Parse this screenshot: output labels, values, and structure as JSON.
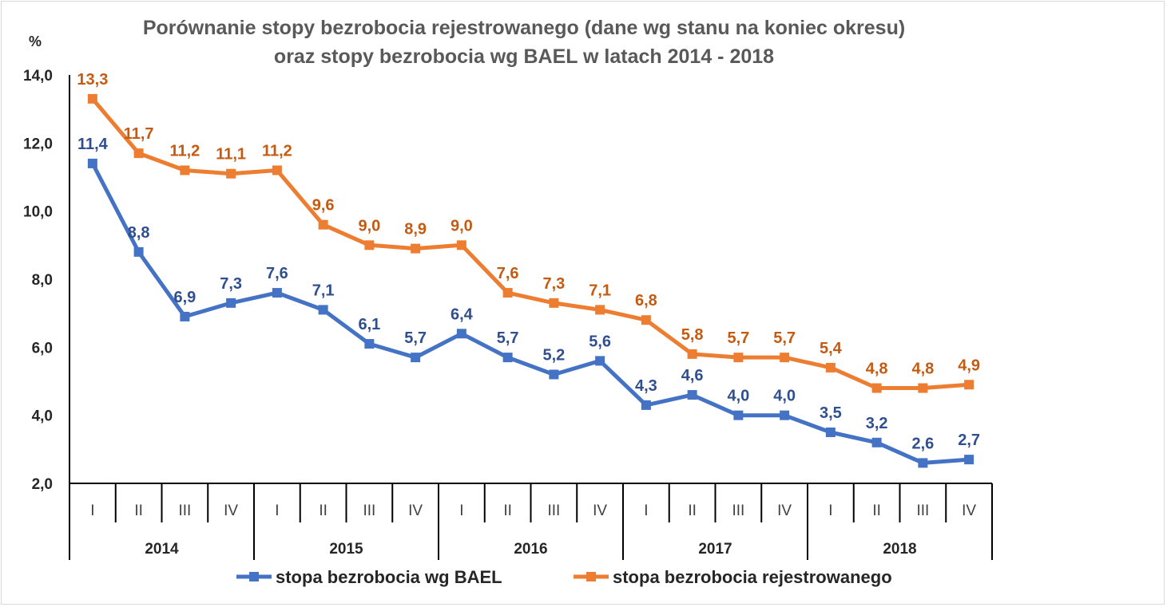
{
  "chart_data": {
    "type": "line",
    "title": "Porównanie stopy bezrobocia rejestrowanego (dane wg stanu na koniec okresu)",
    "subtitle": "oraz stopy bezrobocia wg BAEL w latach 2014 - 2018",
    "ylabel": "%",
    "ylim": [
      2.0,
      14.0
    ],
    "yticks": [
      "2,0",
      "4,0",
      "6,0",
      "8,0",
      "10,0",
      "12,0",
      "14,0"
    ],
    "years": [
      "2014",
      "2015",
      "2016",
      "2017",
      "2018"
    ],
    "quarters": [
      "I",
      "II",
      "III",
      "IV"
    ],
    "categories": [
      "2014 I",
      "2014 II",
      "2014 III",
      "2014 IV",
      "2015 I",
      "2015 II",
      "2015 III",
      "2015 IV",
      "2016 I",
      "2016 II",
      "2016 III",
      "2016 IV",
      "2017 I",
      "2017 II",
      "2017 III",
      "2017 IV",
      "2018 I",
      "2018 II",
      "2018 III",
      "2018 IV"
    ],
    "series": [
      {
        "name": "stopa bezrobocia wg BAEL",
        "color": "#4472c4",
        "values": [
          11.4,
          8.8,
          6.9,
          7.3,
          7.6,
          7.1,
          6.1,
          5.7,
          6.4,
          5.7,
          5.2,
          5.6,
          4.3,
          4.6,
          4.0,
          4.0,
          3.5,
          3.2,
          2.6,
          2.7
        ],
        "labels": [
          "11,4",
          "8,8",
          "6,9",
          "7,3",
          "7,6",
          "7,1",
          "6,1",
          "5,7",
          "6,4",
          "5,7",
          "5,2",
          "5,6",
          "4,3",
          "4,6",
          "4,0",
          "4,0",
          "3,5",
          "3,2",
          "2,6",
          "2,7"
        ]
      },
      {
        "name": "stopa bezrobocia rejestrowanego",
        "color": "#ed7d31",
        "values": [
          13.3,
          11.7,
          11.2,
          11.1,
          11.2,
          9.6,
          9.0,
          8.9,
          9.0,
          7.6,
          7.3,
          7.1,
          6.8,
          5.8,
          5.7,
          5.7,
          5.4,
          4.8,
          4.8,
          4.9
        ],
        "labels": [
          "13,3",
          "11,7",
          "11,2",
          "11,1",
          "11,2",
          "9,6",
          "9,0",
          "8,9",
          "9,0",
          "7,6",
          "7,3",
          "7,1",
          "6,8",
          "5,8",
          "5,7",
          "5,7",
          "5,4",
          "4,8",
          "4,8",
          "4,9"
        ]
      }
    ],
    "legend": "bottom",
    "grid": false
  }
}
